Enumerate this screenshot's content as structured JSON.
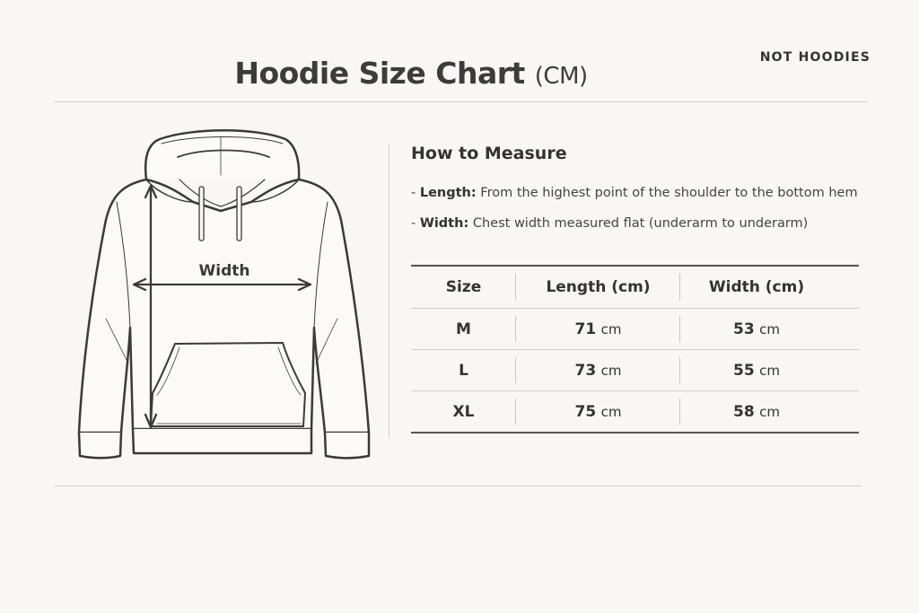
{
  "title": {
    "main": "Hoodie Size Chart",
    "unit": "(CM)"
  },
  "brand": "NOT HOODIES",
  "illustration": {
    "width_label": "Width"
  },
  "how_to_measure": {
    "heading": "How to Measure",
    "items": [
      {
        "term": "Length:",
        "text": "From the highest point of the shoulder to the bottom hem"
      },
      {
        "term": "Width:",
        "text": "Chest width measured flat (underarm to underarm)"
      }
    ]
  },
  "table": {
    "headers": [
      "Size",
      "Length (cm)",
      "Width (cm)"
    ],
    "unit": "cm",
    "rows": [
      {
        "size": "M",
        "length": "71",
        "width": "53"
      },
      {
        "size": "L",
        "length": "73",
        "width": "55"
      },
      {
        "size": "XL",
        "length": "75",
        "width": "58"
      }
    ]
  },
  "colors": {
    "background": "#f9f7f3",
    "ink": "#3a3a3a"
  }
}
